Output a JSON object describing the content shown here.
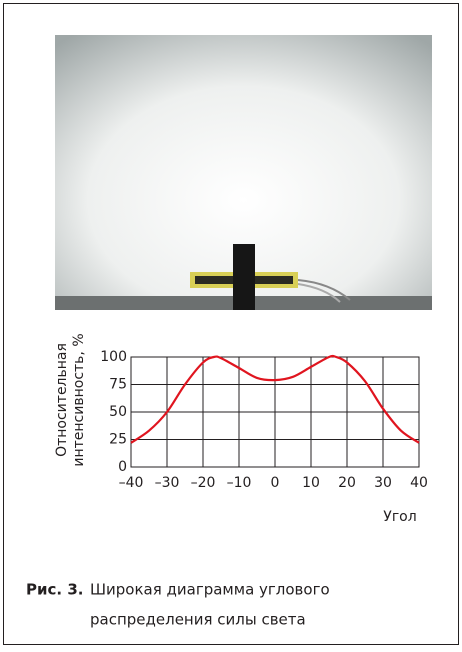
{
  "chart_data": {
    "type": "line",
    "y_label_lines": [
      "Относительная",
      "интенсивность, %"
    ],
    "x_label": "Угол",
    "x": [
      -40,
      -35,
      -30,
      -25,
      -20,
      -17,
      -15,
      -10,
      -5,
      0,
      5,
      10,
      15,
      17,
      20,
      25,
      30,
      35,
      40
    ],
    "values": [
      22,
      33,
      50,
      75,
      95,
      100,
      99,
      90,
      81,
      79,
      82,
      91,
      100,
      100,
      95,
      78,
      53,
      33,
      22
    ],
    "color": "#e0151f",
    "grid": true,
    "xlim": [
      -40,
      40
    ],
    "xticks": [
      {
        "value": -40,
        "label": "–40"
      },
      {
        "value": -30,
        "label": "–30"
      },
      {
        "value": -20,
        "label": "–20"
      },
      {
        "value": -10,
        "label": "–10"
      },
      0,
      10,
      20,
      30,
      40
    ],
    "ylim": [
      0,
      100
    ],
    "yticks": [
      0,
      25,
      50,
      75,
      100
    ]
  },
  "caption": {
    "label": "Рис. 3.",
    "lines": [
      "Широкая диаграмма углового",
      "распределения силы света"
    ]
  }
}
